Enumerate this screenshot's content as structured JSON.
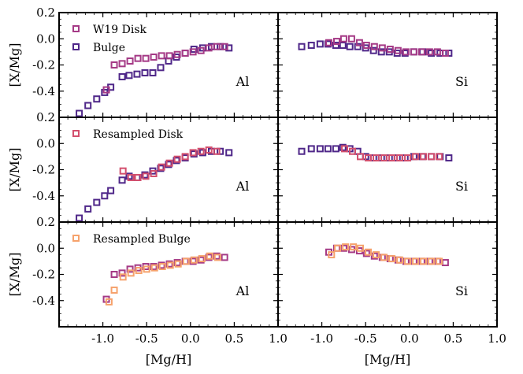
{
  "chart_data": {
    "type": "scatter",
    "xlim": [
      -1.5,
      1.0
    ],
    "ylim": [
      -0.6,
      0.2
    ],
    "xticks": [
      -1.0,
      -0.5,
      0.0,
      0.5,
      1.0
    ],
    "xtick_labels": [
      "-1.0",
      "-0.5",
      "0.0",
      "0.5",
      "1.0"
    ],
    "yticks": [
      0.2,
      0.0,
      -0.2,
      -0.4
    ],
    "ytick_labels": [
      "0.2",
      "0.0",
      "-0.2",
      "-0.4"
    ],
    "xlabel": "[Mg/H]",
    "ylabel": "[X/Mg]",
    "colors": {
      "w19": "#a53a86",
      "bulge": "#4f2789",
      "resampled_disk": "#d34f6d",
      "resampled_bulge": "#f6a26c"
    },
    "rows": [
      {
        "legend": [
          {
            "label": "W19 Disk",
            "color_key": "w19"
          },
          {
            "label": "Bulge",
            "color_key": "bulge"
          }
        ],
        "panels": [
          {
            "element": "Al",
            "series": [
              {
                "name": "Bulge",
                "color_key": "bulge",
                "x": [
                  -1.27,
                  -1.17,
                  -1.07,
                  -0.98,
                  -0.91,
                  -0.78,
                  -0.7,
                  -0.61,
                  -0.52,
                  -0.43,
                  -0.34,
                  -0.25,
                  -0.16,
                  -0.06,
                  0.04,
                  0.14,
                  0.24,
                  0.34,
                  0.44
                ],
                "y": [
                  -0.57,
                  -0.51,
                  -0.46,
                  -0.41,
                  -0.37,
                  -0.29,
                  -0.28,
                  -0.27,
                  -0.26,
                  -0.26,
                  -0.22,
                  -0.17,
                  -0.14,
                  -0.11,
                  -0.08,
                  -0.07,
                  -0.06,
                  -0.06,
                  -0.07
                ]
              },
              {
                "name": "W19 Disk",
                "color_key": "w19",
                "x": [
                  -0.96,
                  -0.87,
                  -0.78,
                  -0.69,
                  -0.6,
                  -0.51,
                  -0.42,
                  -0.33,
                  -0.24,
                  -0.15,
                  -0.06,
                  0.03,
                  0.12,
                  0.21,
                  0.3,
                  0.39
                ],
                "y": [
                  -0.39,
                  -0.2,
                  -0.19,
                  -0.17,
                  -0.15,
                  -0.15,
                  -0.14,
                  -0.13,
                  -0.13,
                  -0.12,
                  -0.11,
                  -0.1,
                  -0.09,
                  -0.07,
                  -0.06,
                  -0.06
                ]
              }
            ]
          },
          {
            "element": "Si",
            "series": [
              {
                "name": "Bulge",
                "color_key": "bulge",
                "x": [
                  -1.23,
                  -1.12,
                  -1.02,
                  -0.93,
                  -0.84,
                  -0.76,
                  -0.68,
                  -0.59,
                  -0.5,
                  -0.41,
                  -0.32,
                  -0.23,
                  -0.14,
                  -0.05,
                  0.05,
                  0.15,
                  0.25,
                  0.35,
                  0.45
                ],
                "y": [
                  -0.06,
                  -0.05,
                  -0.04,
                  -0.04,
                  -0.05,
                  -0.05,
                  -0.06,
                  -0.06,
                  -0.07,
                  -0.09,
                  -0.1,
                  -0.1,
                  -0.11,
                  -0.11,
                  -0.1,
                  -0.1,
                  -0.11,
                  -0.11,
                  -0.11
                ]
              },
              {
                "name": "W19 Disk",
                "color_key": "w19",
                "x": [
                  -0.92,
                  -0.83,
                  -0.75,
                  -0.66,
                  -0.57,
                  -0.49,
                  -0.4,
                  -0.31,
                  -0.22,
                  -0.13,
                  -0.04,
                  0.05,
                  0.14,
                  0.23,
                  0.32,
                  0.41
                ],
                "y": [
                  -0.03,
                  -0.02,
                  0.0,
                  0.0,
                  -0.03,
                  -0.05,
                  -0.06,
                  -0.07,
                  -0.08,
                  -0.09,
                  -0.1,
                  -0.1,
                  -0.1,
                  -0.1,
                  -0.1,
                  -0.11
                ]
              }
            ]
          }
        ]
      },
      {
        "legend": [
          {
            "label": "Resampled Disk",
            "color_key": "resampled_disk"
          }
        ],
        "panels": [
          {
            "element": "Al",
            "series": [
              {
                "name": "Bulge",
                "color_key": "bulge",
                "x": [
                  -1.27,
                  -1.17,
                  -1.07,
                  -0.98,
                  -0.91,
                  -0.78,
                  -0.7,
                  -0.61,
                  -0.52,
                  -0.43,
                  -0.34,
                  -0.25,
                  -0.16,
                  -0.06,
                  0.04,
                  0.14,
                  0.24,
                  0.34,
                  0.44
                ],
                "y": [
                  -0.57,
                  -0.5,
                  -0.45,
                  -0.4,
                  -0.36,
                  -0.28,
                  -0.25,
                  -0.26,
                  -0.24,
                  -0.21,
                  -0.19,
                  -0.16,
                  -0.13,
                  -0.11,
                  -0.08,
                  -0.07,
                  -0.06,
                  -0.06,
                  -0.07
                ]
              },
              {
                "name": "Resampled Disk",
                "color_key": "resampled_disk",
                "x": [
                  -0.77,
                  -0.68,
                  -0.6,
                  -0.51,
                  -0.42,
                  -0.33,
                  -0.24,
                  -0.15,
                  -0.06,
                  0.03,
                  0.12,
                  0.21,
                  0.3
                ],
                "y": [
                  -0.21,
                  -0.26,
                  -0.26,
                  -0.25,
                  -0.23,
                  -0.18,
                  -0.15,
                  -0.12,
                  -0.1,
                  -0.07,
                  -0.06,
                  -0.05,
                  -0.06
                ]
              }
            ]
          },
          {
            "element": "Si",
            "series": [
              {
                "name": "Bulge",
                "color_key": "bulge",
                "x": [
                  -1.23,
                  -1.12,
                  -1.02,
                  -0.93,
                  -0.84,
                  -0.76,
                  -0.68,
                  -0.59,
                  -0.5,
                  -0.41,
                  -0.32,
                  -0.23,
                  -0.14,
                  -0.05,
                  0.05,
                  0.15,
                  0.25,
                  0.35,
                  0.45
                ],
                "y": [
                  -0.06,
                  -0.04,
                  -0.04,
                  -0.04,
                  -0.04,
                  -0.03,
                  -0.04,
                  -0.06,
                  -0.1,
                  -0.11,
                  -0.11,
                  -0.11,
                  -0.11,
                  -0.11,
                  -0.1,
                  -0.1,
                  -0.1,
                  -0.1,
                  -0.11
                ]
              },
              {
                "name": "Resampled Disk",
                "color_key": "resampled_disk",
                "x": [
                  -0.74,
                  -0.65,
                  -0.56,
                  -0.47,
                  -0.38,
                  -0.29,
                  -0.2,
                  -0.11,
                  -0.02,
                  0.07,
                  0.16,
                  0.25,
                  0.34
                ],
                "y": [
                  -0.04,
                  -0.06,
                  -0.1,
                  -0.11,
                  -0.11,
                  -0.11,
                  -0.11,
                  -0.11,
                  -0.11,
                  -0.1,
                  -0.1,
                  -0.1,
                  -0.1
                ]
              }
            ]
          }
        ]
      },
      {
        "legend": [
          {
            "label": "Resampled Bulge",
            "color_key": "resampled_bulge"
          }
        ],
        "panels": [
          {
            "element": "Al",
            "series": [
              {
                "name": "W19 Disk",
                "color_key": "w19",
                "x": [
                  -0.96,
                  -0.87,
                  -0.78,
                  -0.69,
                  -0.6,
                  -0.51,
                  -0.42,
                  -0.33,
                  -0.24,
                  -0.15,
                  -0.06,
                  0.03,
                  0.12,
                  0.21,
                  0.3,
                  0.39
                ],
                "y": [
                  -0.39,
                  -0.2,
                  -0.19,
                  -0.16,
                  -0.15,
                  -0.14,
                  -0.14,
                  -0.13,
                  -0.12,
                  -0.11,
                  -0.1,
                  -0.1,
                  -0.09,
                  -0.07,
                  -0.06,
                  -0.07
                ]
              },
              {
                "name": "Resampled Bulge",
                "color_key": "resampled_bulge",
                "x": [
                  -0.93,
                  -0.87,
                  -0.77,
                  -0.68,
                  -0.59,
                  -0.5,
                  -0.41,
                  -0.32,
                  -0.23,
                  -0.14,
                  -0.05,
                  0.04,
                  0.13,
                  0.22,
                  0.31
                ],
                "y": [
                  -0.41,
                  -0.32,
                  -0.22,
                  -0.19,
                  -0.17,
                  -0.16,
                  -0.15,
                  -0.14,
                  -0.13,
                  -0.12,
                  -0.1,
                  -0.09,
                  -0.08,
                  -0.06,
                  -0.07
                ]
              }
            ]
          },
          {
            "element": "Si",
            "series": [
              {
                "name": "W19 Disk",
                "color_key": "w19",
                "x": [
                  -0.92,
                  -0.83,
                  -0.75,
                  -0.66,
                  -0.57,
                  -0.49,
                  -0.4,
                  -0.31,
                  -0.22,
                  -0.13,
                  -0.04,
                  0.05,
                  0.14,
                  0.23,
                  0.32,
                  0.41
                ],
                "y": [
                  -0.03,
                  0.0,
                  0.0,
                  -0.01,
                  -0.02,
                  -0.04,
                  -0.06,
                  -0.07,
                  -0.08,
                  -0.09,
                  -0.1,
                  -0.1,
                  -0.1,
                  -0.1,
                  -0.1,
                  -0.11
                ]
              },
              {
                "name": "Resampled Bulge",
                "color_key": "resampled_bulge",
                "x": [
                  -0.89,
                  -0.82,
                  -0.73,
                  -0.64,
                  -0.56,
                  -0.47,
                  -0.38,
                  -0.29,
                  -0.2,
                  -0.11,
                  -0.02,
                  0.07,
                  0.16,
                  0.25,
                  0.34
                ],
                "y": [
                  -0.05,
                  0.0,
                  0.01,
                  0.01,
                  0.0,
                  -0.03,
                  -0.05,
                  -0.07,
                  -0.08,
                  -0.09,
                  -0.1,
                  -0.1,
                  -0.1,
                  -0.1,
                  -0.1
                ]
              }
            ]
          }
        ]
      }
    ]
  }
}
